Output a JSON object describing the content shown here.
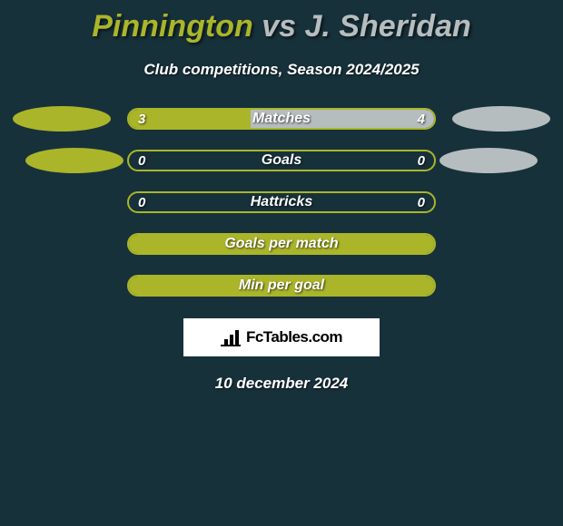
{
  "colors": {
    "background": "#17313b",
    "player_a": "#aab52a",
    "player_b": "#b6bdbf",
    "text": "#ffffff",
    "badge_bg": "#ffffff",
    "badge_fg": "#000000"
  },
  "title": {
    "player_a": "Pinnington",
    "vs": " vs ",
    "player_b": "J. Sheridan"
  },
  "subtitle": "Club competitions, Season 2024/2025",
  "rows": [
    {
      "label": "Matches",
      "left_val": "3",
      "right_val": "4",
      "left_pct": 40,
      "right_pct": 60,
      "show_left_oval": true,
      "show_right_oval": true,
      "show_left_val": true,
      "show_right_val": true
    },
    {
      "label": "Goals",
      "left_val": "0",
      "right_val": "0",
      "left_pct": 0,
      "right_pct": 0,
      "show_left_oval": true,
      "show_right_oval": true,
      "show_left_val": true,
      "show_right_val": true,
      "oval_shift": true
    },
    {
      "label": "Hattricks",
      "left_val": "0",
      "right_val": "0",
      "left_pct": 0,
      "right_pct": 0,
      "show_left_oval": false,
      "show_right_oval": false,
      "show_left_val": true,
      "show_right_val": true
    },
    {
      "label": "Goals per match",
      "left_val": "",
      "right_val": "",
      "left_pct": 100,
      "right_pct": 0,
      "show_left_oval": false,
      "show_right_oval": false,
      "show_left_val": false,
      "show_right_val": false
    },
    {
      "label": "Min per goal",
      "left_val": "",
      "right_val": "",
      "left_pct": 100,
      "right_pct": 0,
      "show_left_oval": false,
      "show_right_oval": false,
      "show_left_val": false,
      "show_right_val": false
    }
  ],
  "badge": {
    "text": "FcTables.com"
  },
  "date": "10 december 2024"
}
